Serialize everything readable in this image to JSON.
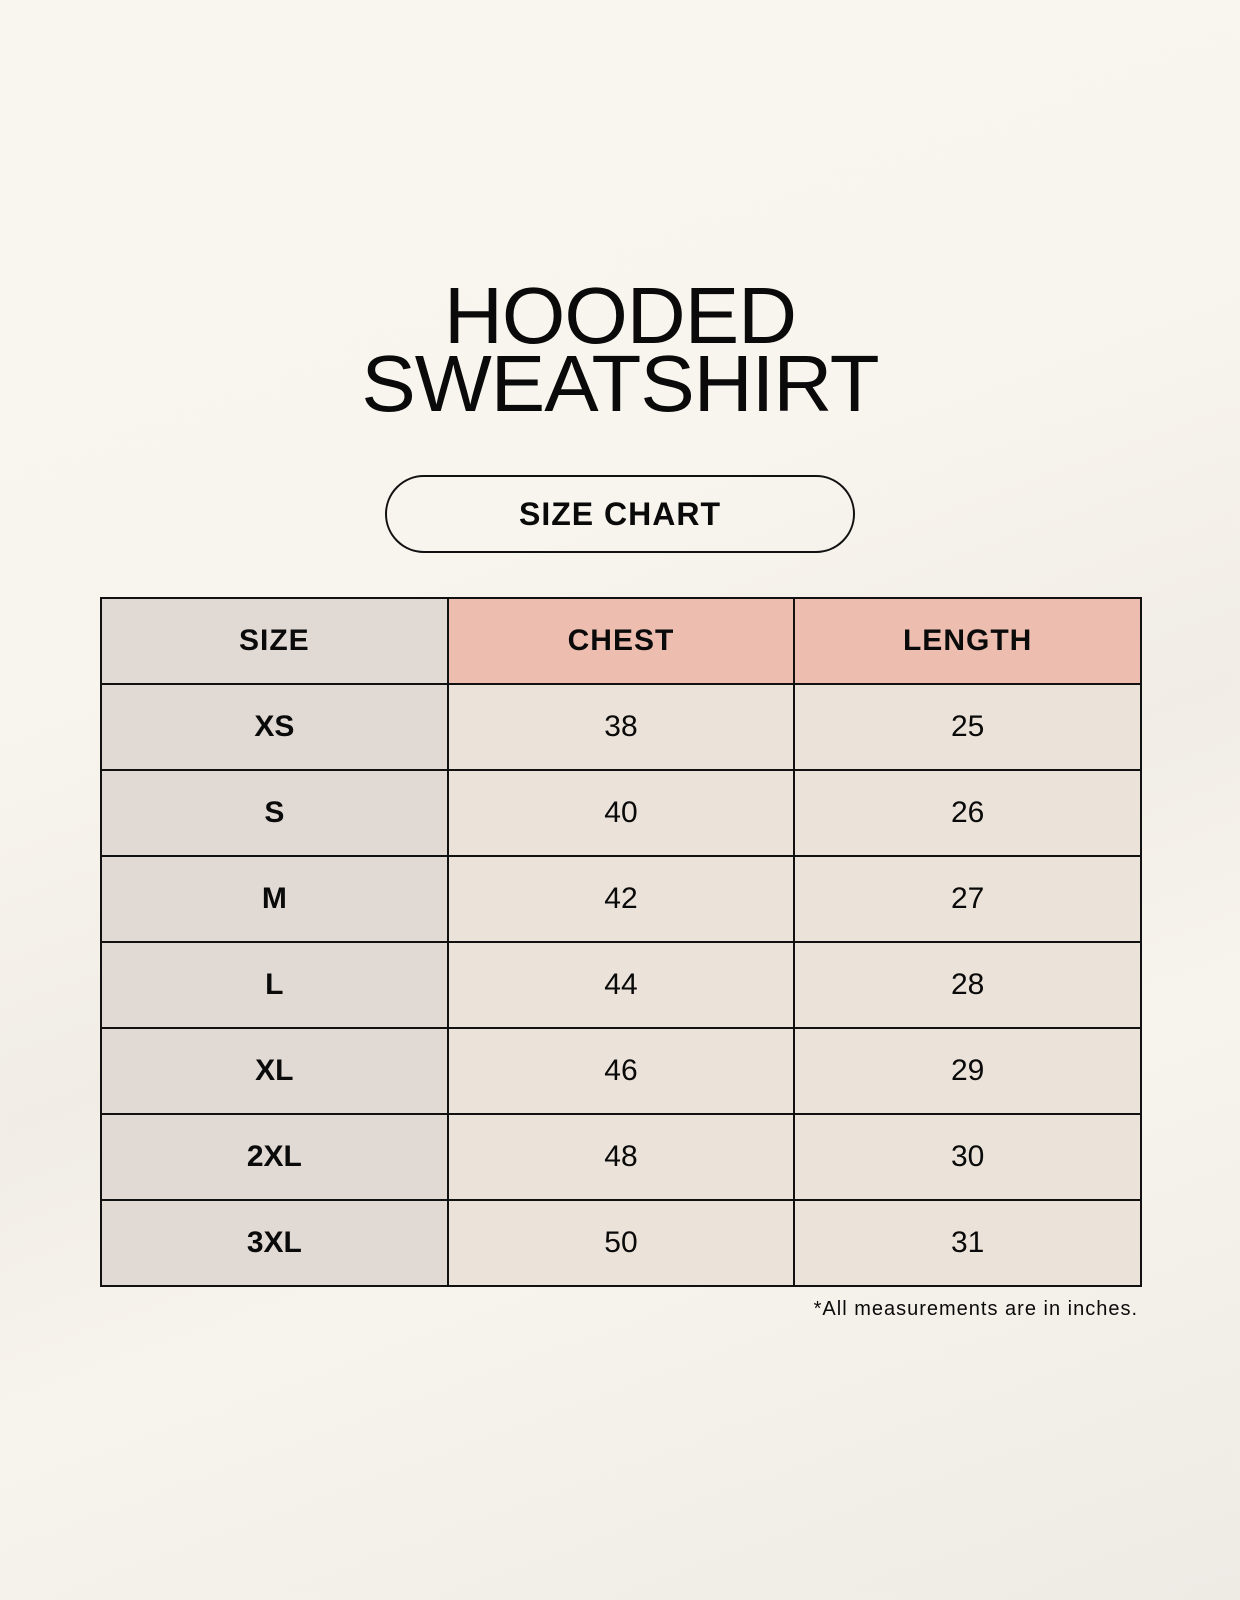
{
  "title": {
    "line1": "HOODED",
    "line2": "SWEATSHIRT"
  },
  "badge": "SIZE CHART",
  "table": {
    "headers": [
      "SIZE",
      "CHEST",
      "LENGTH"
    ],
    "rows": [
      [
        "XS",
        "38",
        "25"
      ],
      [
        "S",
        "40",
        "26"
      ],
      [
        "M",
        "42",
        "27"
      ],
      [
        "L",
        "44",
        "28"
      ],
      [
        "XL",
        "46",
        "29"
      ],
      [
        "2XL",
        "48",
        "30"
      ],
      [
        "3XL",
        "50",
        "31"
      ]
    ]
  },
  "footnote": "*All measurements are in inches.",
  "colors": {
    "size_column": "#e0d9d4",
    "header_accent": "#edbdb0",
    "value_cells": "#ebe3d9"
  }
}
